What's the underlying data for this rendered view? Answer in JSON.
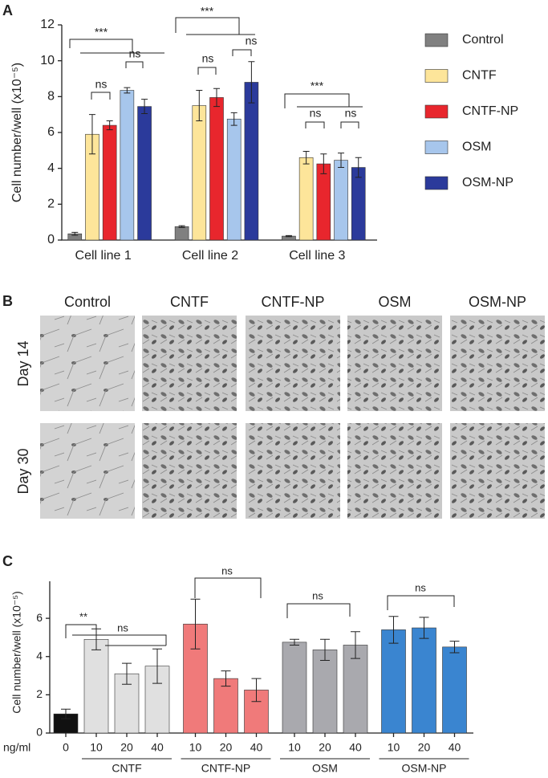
{
  "panels": [
    "A",
    "B",
    "C"
  ],
  "chart_data": [
    {
      "type": "bar",
      "y_label": "Cell number/well (x10⁻⁵)",
      "categories": [
        "Cell line 1",
        "Cell line 2",
        "Cell line 3"
      ],
      "series": [
        {
          "name": "Control",
          "color": "#808080",
          "values": [
            0.35,
            0.75,
            0.22
          ],
          "errors": [
            0.08,
            0.05,
            0.03
          ]
        },
        {
          "name": "CNTF",
          "color": "#fde59a",
          "values": [
            5.9,
            7.5,
            4.6
          ],
          "errors": [
            1.1,
            0.85,
            0.35
          ]
        },
        {
          "name": "CNTF-NP",
          "color": "#e8262d",
          "values": [
            6.4,
            7.95,
            4.25
          ],
          "errors": [
            0.25,
            0.5,
            0.55
          ]
        },
        {
          "name": "OSM",
          "color": "#a7c6ec",
          "values": [
            8.35,
            6.75,
            4.45
          ],
          "errors": [
            0.15,
            0.35,
            0.4
          ]
        },
        {
          "name": "OSM-NP",
          "color": "#2b3a9b",
          "values": [
            7.45,
            8.8,
            4.05
          ],
          "errors": [
            0.4,
            1.15,
            0.55
          ]
        }
      ],
      "ylim": [
        0,
        12
      ],
      "yticks": [
        0,
        2,
        4,
        6,
        8,
        10,
        12
      ],
      "annotations": [
        "***",
        "ns",
        "ns",
        "***",
        "ns",
        "ns",
        "***",
        "ns",
        "ns"
      ]
    },
    {
      "type": "bar",
      "y_label": "Cell number/well (x10⁻⁵)",
      "x_label": "ng/ml",
      "categories": [
        "0",
        "10",
        "20",
        "40",
        "10",
        "20",
        "40",
        "10",
        "20",
        "40",
        "10",
        "20",
        "40"
      ],
      "groups": [
        "CNTF",
        "CNTF-NP",
        "OSM",
        "OSM-NP"
      ],
      "values": [
        1.0,
        4.9,
        3.1,
        3.5,
        5.7,
        2.85,
        2.25,
        4.75,
        4.35,
        4.6,
        5.4,
        5.5,
        4.5
      ],
      "errors": [
        0.25,
        0.55,
        0.55,
        0.9,
        1.3,
        0.4,
        0.6,
        0.15,
        0.55,
        0.7,
        0.7,
        0.55,
        0.3
      ],
      "colors": [
        "#111111",
        "#e0e0e0",
        "#e0e0e0",
        "#e0e0e0",
        "#f07a7a",
        "#f07a7a",
        "#f07a7a",
        "#a9a9ae",
        "#a9a9ae",
        "#a9a9ae",
        "#3a85d0",
        "#3a85d0",
        "#3a85d0"
      ],
      "ylim": [
        0,
        7.6
      ],
      "yticks": [
        0,
        2,
        4,
        6
      ],
      "annotations": [
        "**",
        "ns",
        "ns",
        "ns",
        "ns"
      ]
    }
  ],
  "micrographs": {
    "columns": [
      "Control",
      "CNTF",
      "CNTF-NP",
      "OSM",
      "OSM-NP"
    ],
    "rows": [
      "Day 14",
      "Day 30"
    ]
  }
}
